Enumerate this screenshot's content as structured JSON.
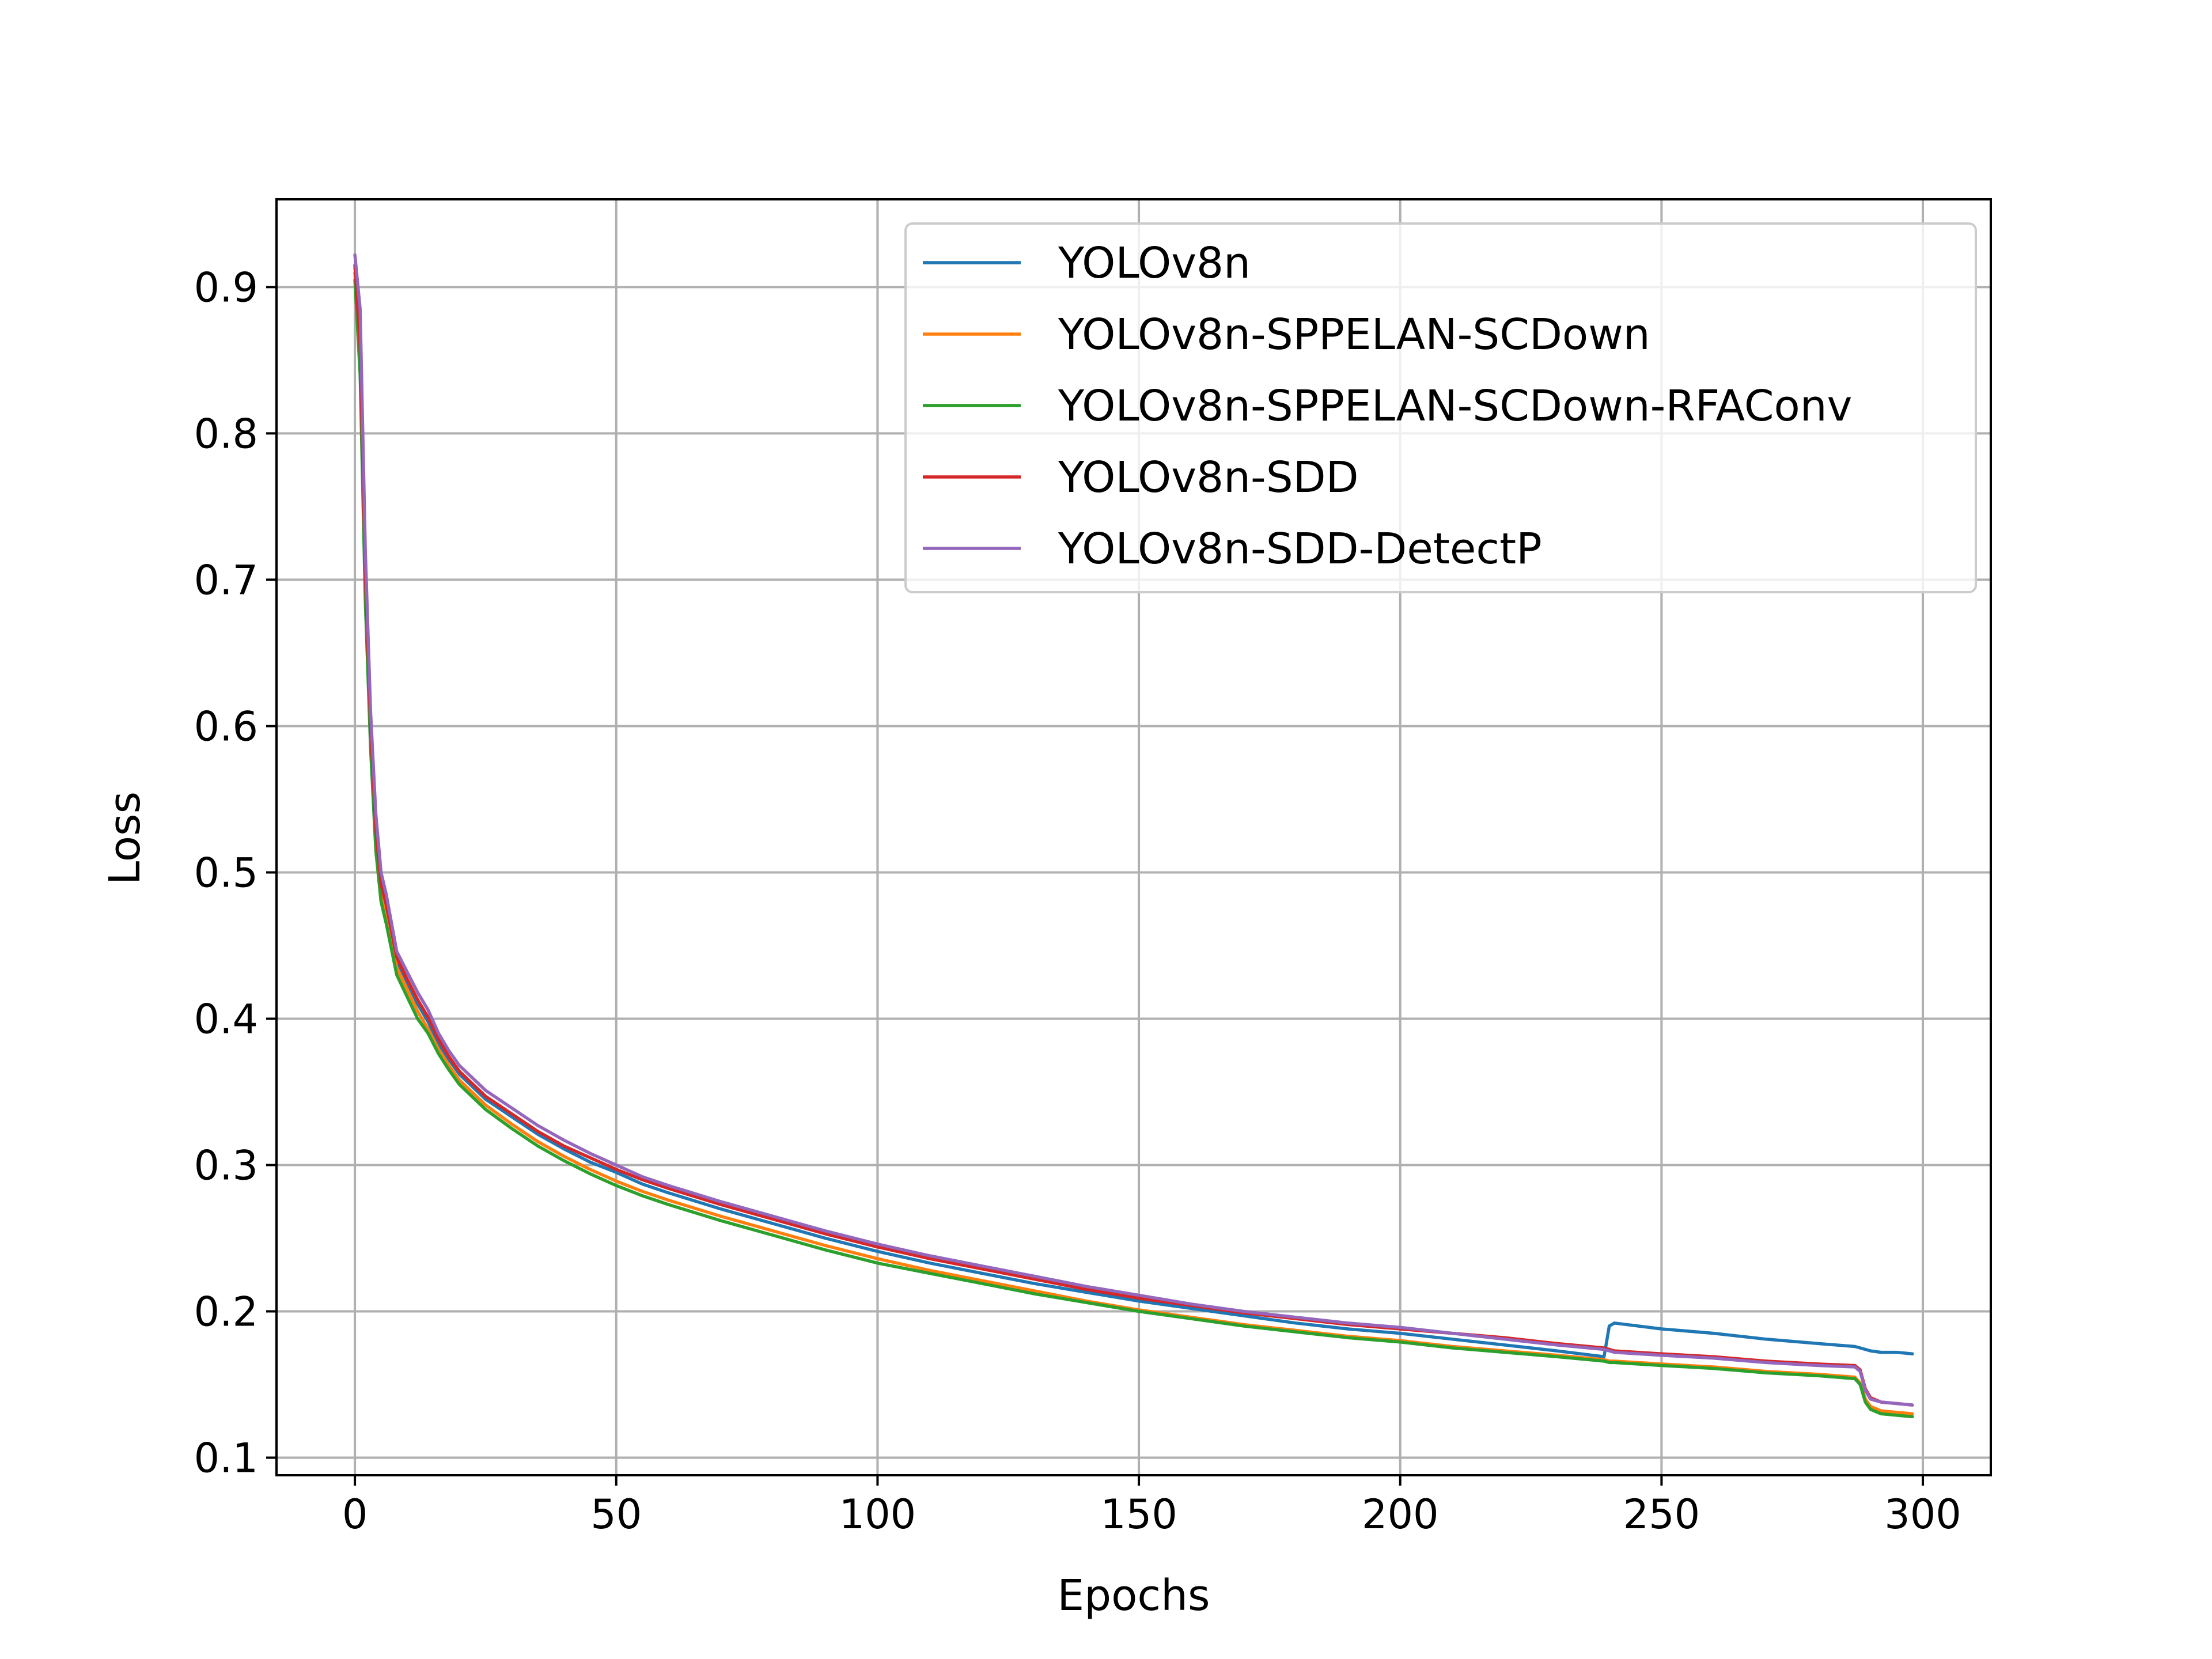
{
  "chart_data": {
    "type": "line",
    "title": "",
    "xlabel": "Epochs",
    "ylabel": "Loss",
    "xlim": [
      -15,
      313
    ],
    "ylim": [
      0.088,
      0.96
    ],
    "xticks": [
      0,
      50,
      100,
      150,
      200,
      250,
      300
    ],
    "yticks": [
      0.1,
      0.2,
      0.3,
      0.4,
      0.5,
      0.6,
      0.7,
      0.8,
      0.9
    ],
    "grid": true,
    "legend_position": "top-right",
    "x": [
      0,
      1,
      2,
      3,
      4,
      5,
      6,
      8,
      10,
      12,
      14,
      16,
      18,
      20,
      25,
      30,
      35,
      40,
      45,
      50,
      55,
      60,
      70,
      80,
      90,
      100,
      110,
      120,
      130,
      140,
      150,
      160,
      170,
      180,
      190,
      200,
      210,
      220,
      230,
      239,
      240,
      241,
      250,
      260,
      270,
      280,
      287,
      288,
      289,
      290,
      292,
      295,
      298
    ],
    "series": [
      {
        "name": "YOLOv8n",
        "color": "#1f77b4",
        "values": [
          0.915,
          0.86,
          0.7,
          0.6,
          0.525,
          0.49,
          0.475,
          0.44,
          0.425,
          0.41,
          0.398,
          0.383,
          0.372,
          0.362,
          0.345,
          0.333,
          0.321,
          0.311,
          0.302,
          0.295,
          0.287,
          0.281,
          0.27,
          0.26,
          0.25,
          0.241,
          0.233,
          0.226,
          0.219,
          0.213,
          0.207,
          0.202,
          0.197,
          0.192,
          0.188,
          0.185,
          0.181,
          0.177,
          0.173,
          0.169,
          0.19,
          0.192,
          0.188,
          0.185,
          0.181,
          0.178,
          0.176,
          0.175,
          0.174,
          0.173,
          0.172,
          0.172,
          0.171
        ]
      },
      {
        "name": "YOLOv8n-SPPELAN-SCDown",
        "color": "#ff7f0e",
        "values": [
          0.91,
          0.85,
          0.69,
          0.59,
          0.52,
          0.485,
          0.47,
          0.435,
          0.42,
          0.405,
          0.393,
          0.379,
          0.368,
          0.358,
          0.341,
          0.328,
          0.316,
          0.306,
          0.297,
          0.289,
          0.282,
          0.276,
          0.265,
          0.255,
          0.245,
          0.236,
          0.228,
          0.221,
          0.214,
          0.207,
          0.201,
          0.196,
          0.191,
          0.187,
          0.183,
          0.18,
          0.176,
          0.173,
          0.17,
          0.167,
          0.166,
          0.166,
          0.164,
          0.162,
          0.159,
          0.157,
          0.155,
          0.151,
          0.14,
          0.135,
          0.132,
          0.131,
          0.13
        ]
      },
      {
        "name": "YOLOv8n-SPPELAN-SCDown-RFAConv",
        "color": "#2ca02c",
        "values": [
          0.905,
          0.84,
          0.685,
          0.585,
          0.515,
          0.48,
          0.465,
          0.43,
          0.415,
          0.4,
          0.39,
          0.376,
          0.365,
          0.355,
          0.338,
          0.325,
          0.313,
          0.303,
          0.294,
          0.286,
          0.279,
          0.273,
          0.262,
          0.252,
          0.242,
          0.233,
          0.226,
          0.219,
          0.212,
          0.206,
          0.2,
          0.195,
          0.19,
          0.186,
          0.182,
          0.179,
          0.175,
          0.172,
          0.169,
          0.166,
          0.165,
          0.165,
          0.163,
          0.161,
          0.158,
          0.156,
          0.154,
          0.15,
          0.138,
          0.133,
          0.13,
          0.129,
          0.128
        ]
      },
      {
        "name": "YOLOv8n-SDD",
        "color": "#d62728",
        "values": [
          0.915,
          0.86,
          0.705,
          0.6,
          0.53,
          0.492,
          0.478,
          0.442,
          0.427,
          0.413,
          0.401,
          0.386,
          0.374,
          0.364,
          0.347,
          0.335,
          0.323,
          0.313,
          0.305,
          0.297,
          0.29,
          0.284,
          0.273,
          0.263,
          0.253,
          0.244,
          0.236,
          0.229,
          0.222,
          0.215,
          0.209,
          0.204,
          0.199,
          0.195,
          0.191,
          0.188,
          0.185,
          0.182,
          0.178,
          0.175,
          0.174,
          0.173,
          0.171,
          0.169,
          0.166,
          0.164,
          0.163,
          0.16,
          0.147,
          0.141,
          0.138,
          0.137,
          0.136
        ]
      },
      {
        "name": "YOLOv8n-SDD-DetectP",
        "color": "#9467bd",
        "values": [
          0.922,
          0.885,
          0.72,
          0.61,
          0.54,
          0.5,
          0.485,
          0.446,
          0.432,
          0.418,
          0.406,
          0.39,
          0.378,
          0.368,
          0.351,
          0.339,
          0.327,
          0.317,
          0.308,
          0.3,
          0.292,
          0.286,
          0.275,
          0.265,
          0.255,
          0.246,
          0.238,
          0.231,
          0.224,
          0.217,
          0.211,
          0.205,
          0.2,
          0.196,
          0.192,
          0.189,
          0.185,
          0.181,
          0.177,
          0.174,
          0.173,
          0.172,
          0.17,
          0.168,
          0.165,
          0.163,
          0.162,
          0.159,
          0.146,
          0.14,
          0.138,
          0.137,
          0.136
        ]
      }
    ]
  }
}
